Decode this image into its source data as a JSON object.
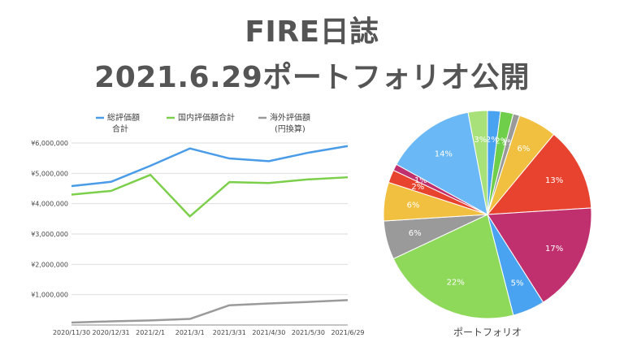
{
  "title_line1": "FIRE日誌",
  "title_line2": "2021.6.29ポートフォリオ公開",
  "chart_data": [
    {
      "type": "line",
      "categories": [
        "2020/11/30",
        "2020/12/31",
        "2021/2/1",
        "2021/3/1",
        "2021/3/31",
        "2021/4/30",
        "2021/5/30",
        "2021/6/29"
      ],
      "ylim": [
        0,
        6000000
      ],
      "yticks": [
        "¥1,000,000",
        "¥2,000,000",
        "¥3,000,000",
        "¥4,000,000",
        "¥5,000,000",
        "¥6,000,000"
      ],
      "ytick_values": [
        1000000,
        2000000,
        3000000,
        4000000,
        5000000,
        6000000
      ],
      "grid": true,
      "legend_position": "top",
      "series": [
        {
          "name": "総評価額合計",
          "name_lines": [
            "総評価額",
            "合計"
          ],
          "color": "#4a9be8",
          "values": [
            4580000,
            4720000,
            5250000,
            5820000,
            5490000,
            5400000,
            5680000,
            5900000
          ]
        },
        {
          "name": "国内評価額合計",
          "name_lines": [
            "国内評価額合計"
          ],
          "color": "#7ccf4a",
          "values": [
            4300000,
            4420000,
            4950000,
            3580000,
            4710000,
            4680000,
            4800000,
            4870000
          ]
        },
        {
          "name": "海外評価額(円換算)",
          "name_lines": [
            "海外評価額",
            "(円換算)"
          ],
          "color": "#9a9a9a",
          "values": [
            80000,
            120000,
            150000,
            200000,
            650000,
            710000,
            760000,
            820000
          ]
        }
      ]
    },
    {
      "type": "pie",
      "title": "ポートフォリオ",
      "slices": [
        {
          "value": 2,
          "label": "2%",
          "color": "#4aa3f0"
        },
        {
          "value": 2,
          "label": "2%",
          "color": "#6fcf4a"
        },
        {
          "value": 1,
          "label": "1%",
          "color": "#9a9a9a"
        },
        {
          "value": 6,
          "label": "6%",
          "color": "#f2c040"
        },
        {
          "value": 13,
          "label": "13%",
          "color": "#e8432e"
        },
        {
          "value": 17,
          "label": "17%",
          "color": "#c0306e"
        },
        {
          "value": 5,
          "label": "5%",
          "color": "#4aa3f0"
        },
        {
          "value": 22,
          "label": "22%",
          "color": "#8ed85a"
        },
        {
          "value": 6,
          "label": "6%",
          "color": "#9a9a9a"
        },
        {
          "value": 6,
          "label": "6%",
          "color": "#f2c040"
        },
        {
          "value": 2,
          "label": "2%",
          "color": "#e8432e"
        },
        {
          "value": 1,
          "label": "1%",
          "color": "#c0306e"
        },
        {
          "value": 14,
          "label": "14%",
          "color": "#6ab8f5"
        },
        {
          "value": 3,
          "label": "3%",
          "color": "#a8e07a"
        }
      ]
    }
  ]
}
